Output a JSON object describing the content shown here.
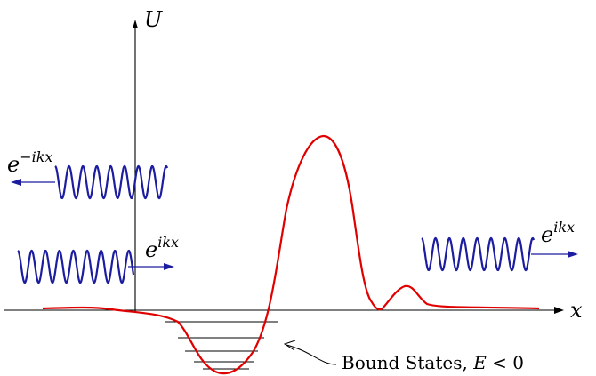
{
  "axes": {
    "y_label": "U",
    "x_label": "x"
  },
  "waves": {
    "reflected": {
      "base": "e",
      "exponent": "−ikx"
    },
    "incident": {
      "base": "e",
      "exponent": "ikx"
    },
    "transmitted": {
      "base": "e",
      "exponent": "ikx"
    }
  },
  "annotation": {
    "text": "Bound States, ",
    "condition_var": "E",
    "condition_rest": " < 0"
  },
  "colors": {
    "potential": "#e00000",
    "wave": "#1c1ca0",
    "axis": "#000000"
  },
  "bound_state_levels": 5
}
